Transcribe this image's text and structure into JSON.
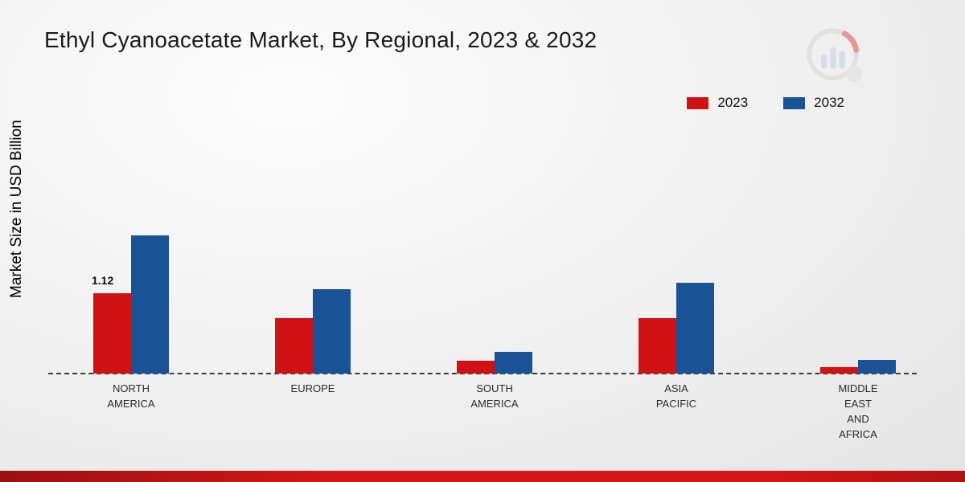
{
  "page": {
    "title": "Ethyl Cyanoacetate Market, By Regional, 2023 & 2032",
    "y_axis_label": "Market Size in USD Billion"
  },
  "colors": {
    "series_2023": "#cf1315",
    "series_2032": "#1a5296",
    "footer_strip": "#d41717",
    "baseline": "#3c3c3c"
  },
  "chart_data": {
    "type": "bar",
    "title": "Ethyl Cyanoacetate Market, By Regional, 2023 & 2032",
    "xlabel": "",
    "ylabel": "Market Size in USD Billion",
    "unit": "USD Billion",
    "categories": [
      "NORTH AMERICA",
      "EUROPE",
      "SOUTH AMERICA",
      "ASIA PACIFIC",
      "MIDDLE EAST AND AFRICA"
    ],
    "category_label_lines": [
      [
        "NORTH",
        "AMERICA"
      ],
      [
        "EUROPE"
      ],
      [
        "SOUTH",
        "AMERICA"
      ],
      [
        "ASIA",
        "PACIFIC"
      ],
      [
        "MIDDLE",
        "EAST",
        "AND",
        "AFRICA"
      ]
    ],
    "series": [
      {
        "name": "2023",
        "color": "#cf1315",
        "values": [
          1.12,
          0.78,
          0.18,
          0.78,
          0.09
        ]
      },
      {
        "name": "2032",
        "color": "#1a5296",
        "values": [
          1.93,
          1.18,
          0.3,
          1.27,
          0.19
        ]
      }
    ],
    "annotations": [
      {
        "text": "1.12",
        "series": "2023",
        "category_index": 0
      }
    ],
    "ylim": [
      0,
      2.2
    ],
    "grid": false,
    "legend_position": "top-right",
    "baseline_style": "dashed"
  }
}
